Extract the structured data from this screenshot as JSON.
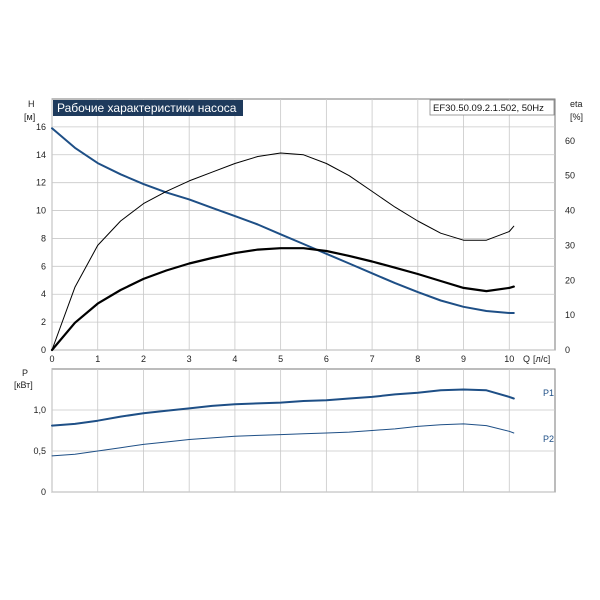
{
  "chart_data": [
    {
      "type": "line",
      "title": "Рабочие характеристики насоса",
      "model": "EF30.50.09.2.1.502, 50Hz",
      "xlabel": "Q [л/с]",
      "xlabel_name": "Q",
      "xlabel_unit": "[л/с]",
      "ylabel_left": "H",
      "ylabel_left_unit": "[м]",
      "ylabel_right": "eta",
      "ylabel_right_unit": "[%]",
      "xlim": [
        0,
        11
      ],
      "ylim": [
        0,
        18
      ],
      "ylim_right": [
        0,
        72
      ],
      "xticks": [
        "0",
        "1",
        "2",
        "3",
        "4",
        "5",
        "6",
        "7",
        "8",
        "9",
        "10"
      ],
      "yticks_left": [
        "0",
        "2",
        "4",
        "6",
        "8",
        "10",
        "12",
        "14",
        "16"
      ],
      "yticks_right": [
        "0",
        "10",
        "20",
        "30",
        "40",
        "50",
        "60"
      ],
      "grid": true,
      "series": [
        {
          "name": "H",
          "axis": "left",
          "color": "#1e4f86",
          "width": 2,
          "x": [
            0,
            0.5,
            1,
            1.5,
            2,
            2.5,
            3,
            3.5,
            4,
            4.5,
            5,
            5.5,
            6,
            6.5,
            7,
            7.5,
            8,
            8.5,
            9,
            9.5,
            10,
            10.1
          ],
          "y": [
            15.9,
            14.5,
            13.4,
            12.6,
            11.9,
            11.3,
            10.8,
            10.2,
            9.6,
            9.0,
            8.3,
            7.6,
            6.9,
            6.2,
            5.5,
            4.8,
            4.15,
            3.55,
            3.1,
            2.8,
            2.65,
            2.65
          ]
        },
        {
          "name": "eta",
          "axis": "right",
          "color": "#000000",
          "width": 1,
          "x": [
            0,
            0.5,
            1,
            1.5,
            2,
            2.5,
            3,
            3.5,
            4,
            4.5,
            5,
            5.5,
            6,
            6.5,
            7,
            7.5,
            8,
            8.5,
            9,
            9.5,
            10,
            10.1
          ],
          "y": [
            0,
            18,
            30,
            37,
            42,
            45.5,
            48.5,
            51,
            53.5,
            55.5,
            56.5,
            56,
            53.5,
            50,
            45.5,
            41,
            37,
            33.5,
            31.5,
            31.5,
            34,
            35.5
          ]
        },
        {
          "name": "eta_p2",
          "axis": "right",
          "color": "#000000",
          "width": 2.2,
          "x": [
            0,
            0.5,
            1,
            1.5,
            2,
            2.5,
            3,
            3.5,
            4,
            4.5,
            5,
            5.5,
            6,
            6.5,
            7,
            7.5,
            8,
            8.5,
            9,
            9.5,
            10,
            10.1
          ],
          "y": [
            0,
            7.8,
            13.3,
            17.2,
            20.4,
            22.8,
            24.8,
            26.4,
            27.8,
            28.8,
            29.2,
            29.2,
            28.4,
            27.0,
            25.4,
            23.6,
            21.8,
            19.8,
            17.8,
            16.9,
            17.8,
            18.2
          ]
        }
      ]
    },
    {
      "type": "line",
      "ylabel": "P",
      "ylabel_unit": "[кВт]",
      "xlim": [
        0,
        11
      ],
      "ylim": [
        0,
        1.5
      ],
      "yticks": [
        "0",
        "0,5",
        "1,0"
      ],
      "grid": true,
      "series": [
        {
          "name": "P1",
          "color": "#1e4f86",
          "width": 2,
          "x": [
            0,
            0.5,
            1,
            1.5,
            2,
            2.5,
            3,
            3.5,
            4,
            4.5,
            5,
            5.5,
            6,
            6.5,
            7,
            7.5,
            8,
            8.5,
            9,
            9.5,
            10,
            10.1
          ],
          "y": [
            0.81,
            0.83,
            0.87,
            0.92,
            0.96,
            0.99,
            1.02,
            1.05,
            1.07,
            1.08,
            1.09,
            1.11,
            1.12,
            1.14,
            1.16,
            1.19,
            1.21,
            1.24,
            1.25,
            1.24,
            1.16,
            1.14
          ]
        },
        {
          "name": "P2",
          "color": "#1e4f86",
          "width": 1,
          "x": [
            0,
            0.5,
            1,
            1.5,
            2,
            2.5,
            3,
            3.5,
            4,
            4.5,
            5,
            5.5,
            6,
            6.5,
            7,
            7.5,
            8,
            8.5,
            9,
            9.5,
            10,
            10.1
          ],
          "y": [
            0.44,
            0.46,
            0.5,
            0.54,
            0.58,
            0.61,
            0.64,
            0.66,
            0.68,
            0.69,
            0.7,
            0.71,
            0.72,
            0.73,
            0.75,
            0.77,
            0.8,
            0.82,
            0.83,
            0.81,
            0.74,
            0.72
          ]
        }
      ]
    }
  ],
  "colors": {
    "grid": "#c8c8c8",
    "frame": "#7a7a7a",
    "title_bg": "#1e3a5c",
    "blue": "#1e4f86"
  }
}
